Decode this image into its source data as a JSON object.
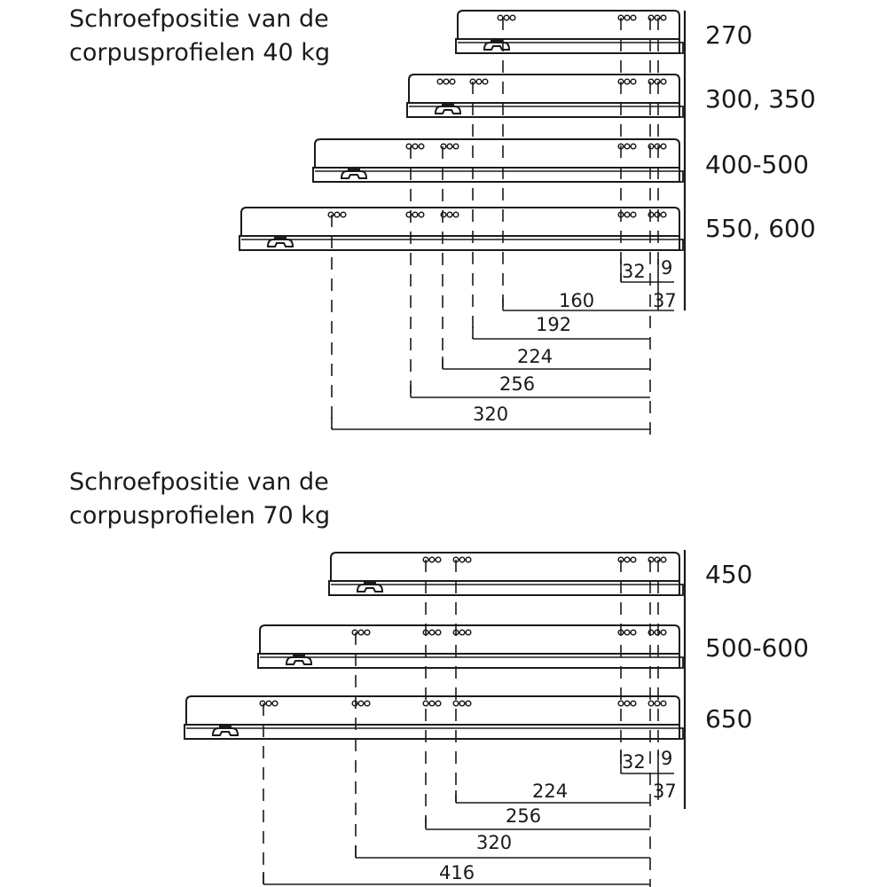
{
  "sections": [
    {
      "title_line1": "Schroefpositie van de",
      "title_line2": "corpusprofielen 40 kg",
      "rails": [
        {
          "label": "270"
        },
        {
          "label": "300, 350"
        },
        {
          "label": "400-500"
        },
        {
          "label": "550, 600"
        }
      ],
      "small_dims": [
        "32",
        "9",
        "37"
      ],
      "dims": [
        "160",
        "192",
        "224",
        "256",
        "320"
      ]
    },
    {
      "title_line1": "Schroefpositie van de",
      "title_line2": "corpusprofielen 70 kg",
      "rails": [
        {
          "label": "450"
        },
        {
          "label": "500-600"
        },
        {
          "label": "650"
        }
      ],
      "small_dims": [
        "32",
        "9",
        "37"
      ],
      "dims": [
        "224",
        "256",
        "320",
        "416"
      ]
    }
  ],
  "line_color": "#1a1a1a"
}
